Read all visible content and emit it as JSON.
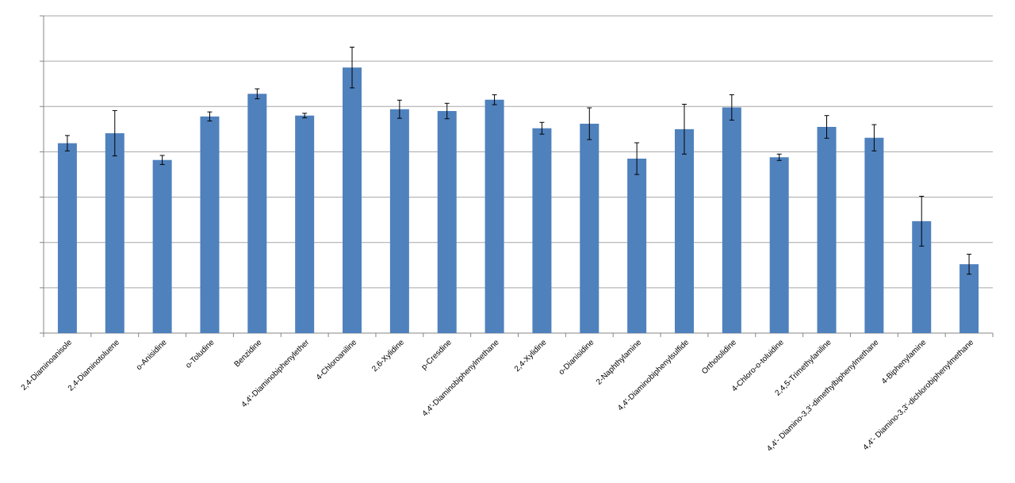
{
  "chart_data": {
    "type": "bar",
    "title": "",
    "xlabel": "",
    "ylabel": "",
    "ylim": [
      0,
      7
    ],
    "grid": true,
    "y_tick_labels_shown": false,
    "bar_color": "#4F81BD",
    "grid_color": "#A6A6A6",
    "axis_color": "#868686",
    "categories": [
      "2,4-Diaminoanisole",
      "2,4-Diaminotoluene",
      "o-Anisidine",
      "o-Toludine",
      "Benzidine",
      "4,4'-Diaminobiphenylether",
      "4-Chloroaniline",
      "2,6-Xylidine",
      "p-Cresdine",
      "4,4'-Diaminobiphenylmethane",
      "2,4-Xylidine",
      "o-Dianisidine",
      "2-Naphthylamine",
      "4,4'-Diaminobiphenylsulfide",
      "Orthotolidine",
      "4-Chloro-o-toluidine",
      "2,4,5-Trimethylaniline",
      "4,4'- Diamino-3,3'-dimethylbiphenylmethane",
      "4-Biphenylamine",
      "4,4'- Diamino-3,3'-dichlorobiphenylmethane"
    ],
    "series": [
      {
        "values": [
          4.19,
          4.41,
          3.82,
          4.78,
          5.28,
          4.8,
          5.86,
          4.94,
          4.9,
          5.15,
          4.52,
          4.62,
          3.85,
          4.5,
          4.98,
          3.88,
          4.55,
          4.31,
          2.47,
          1.52
        ],
        "error": [
          0.17,
          0.5,
          0.1,
          0.1,
          0.11,
          0.05,
          0.45,
          0.2,
          0.17,
          0.11,
          0.13,
          0.35,
          0.35,
          0.55,
          0.28,
          0.07,
          0.25,
          0.29,
          0.55,
          0.22
        ]
      }
    ]
  }
}
